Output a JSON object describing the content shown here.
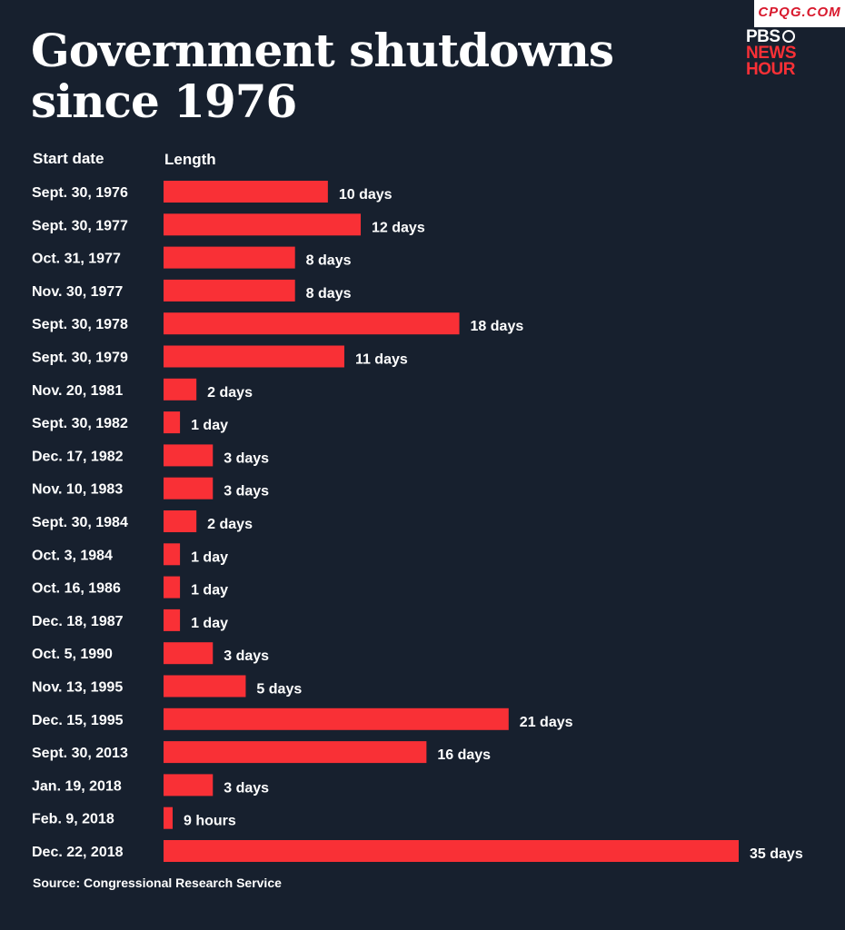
{
  "watermark": "CPQG.COM",
  "logo": {
    "line1": "PBS",
    "line2": "NEWS",
    "line3": "HOUR"
  },
  "colors": {
    "background": "#17202e",
    "bar": "#f93036",
    "text": "#ffffff"
  },
  "chart_data": {
    "type": "bar",
    "orientation": "horizontal",
    "title": "Government shutdowns since 1976",
    "column_headers": [
      "Start date",
      "Length"
    ],
    "source": "Source: Congressional Research Service",
    "unit": "days",
    "categories": [
      "Sept. 30, 1976",
      "Sept. 30, 1977",
      "Oct. 31, 1977",
      "Nov. 30, 1977",
      "Sept. 30, 1978",
      "Sept. 30, 1979",
      "Nov. 20, 1981",
      "Sept. 30, 1982",
      "Dec. 17, 1982",
      "Nov. 10, 1983",
      "Sept. 30, 1984",
      "Oct. 3, 1984",
      "Oct. 16, 1986",
      "Dec. 18, 1987",
      "Oct. 5, 1990",
      "Nov. 13, 1995",
      "Dec. 15, 1995",
      "Sept. 30, 2013",
      "Jan. 19, 2018",
      "Feb. 9, 2018",
      "Dec. 22, 2018"
    ],
    "values": [
      10,
      12,
      8,
      8,
      18,
      11,
      2,
      1,
      3,
      3,
      2,
      1,
      1,
      1,
      3,
      5,
      21,
      16,
      3,
      0.375,
      35
    ],
    "labels": [
      "10 days",
      "12 days",
      "8 days",
      "8 days",
      "18 days",
      "11 days",
      "2 days",
      "1 day",
      "3 days",
      "3 days",
      "2 days",
      "1 day",
      "1 day",
      "1 day",
      "3 days",
      "5 days",
      "21 days",
      "16 days",
      "3 days",
      "9 hours",
      "35 days"
    ],
    "xlim": [
      0,
      35
    ]
  }
}
